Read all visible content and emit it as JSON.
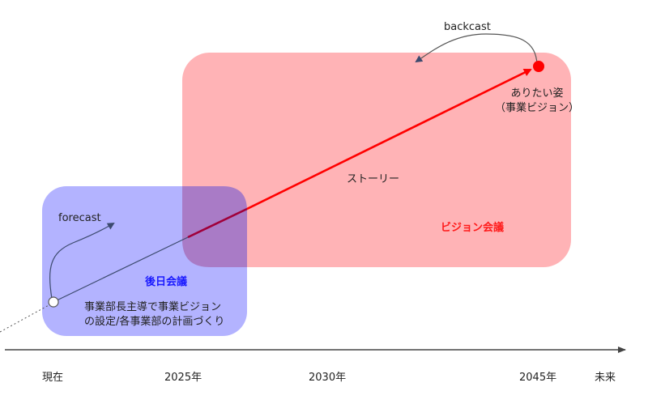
{
  "labels": {
    "backcast": "backcast",
    "forecast": "forecast",
    "story": "ストーリー",
    "ideal_line1": "ありたい姿",
    "ideal_line2": "（事業ビジョン）",
    "later_meeting": "後日会議",
    "vision_meeting": "ビジョン会議",
    "desc_line1": "事業部長主導で事業ビジョン",
    "desc_line2": "の設定/各事業部の計画づくり"
  },
  "timeline": {
    "ticks": [
      "現在",
      "2025年",
      "2030年",
      "2045年",
      "未来"
    ]
  },
  "colors": {
    "blue_box": "#b3b3ff",
    "red_box": "#ffb3b6",
    "overlap": "#a97bc6",
    "arrow_red": "#ff0000",
    "arrow_dark": "#3c4a6e",
    "blue_text": "#1a1aff",
    "red_text": "#ff1a1a"
  }
}
